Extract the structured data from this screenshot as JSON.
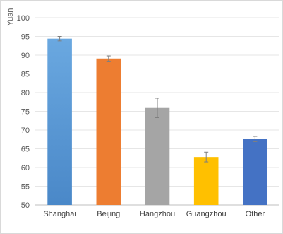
{
  "chart_data": {
    "type": "bar",
    "title": "",
    "xlabel": "",
    "ylabel": "Yuan",
    "ylim": [
      50,
      100
    ],
    "ytick_step": 5,
    "yticks": [
      "50",
      "55",
      "60",
      "65",
      "70",
      "75",
      "80",
      "85",
      "90",
      "95",
      "100"
    ],
    "grid": true,
    "legend": "none",
    "categories": [
      "Shanghai",
      "Beijing",
      "Hangzhou",
      "Guangzhou",
      "Other"
    ],
    "values": [
      94.4,
      89.1,
      75.9,
      62.8,
      67.6
    ],
    "error": [
      0.6,
      0.7,
      2.6,
      1.3,
      0.7
    ],
    "colors": [
      "#5b9bd5",
      "#ed7d31",
      "#a5a5a5",
      "#ffc000",
      "#4472c4"
    ]
  }
}
